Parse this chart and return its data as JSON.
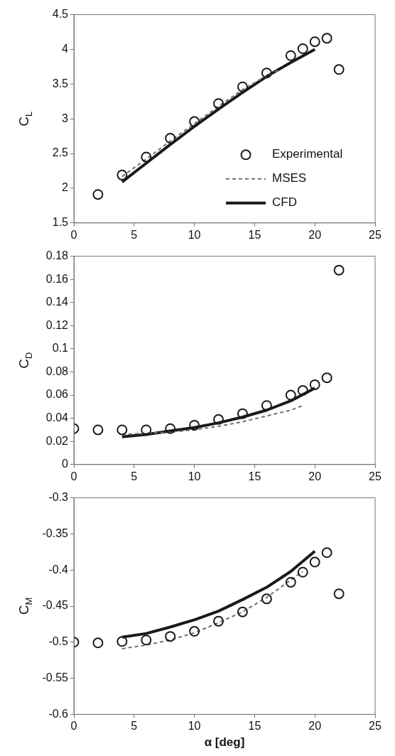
{
  "chart_data": [
    {
      "type": "line",
      "ylabel": "C$_{L}$",
      "xlim": [
        0,
        25
      ],
      "xticks": [
        0,
        5,
        10,
        15,
        20,
        25
      ],
      "ylim": [
        1.5,
        4.5
      ],
      "yticks": [
        1.5,
        2,
        2.5,
        3,
        3.5,
        4,
        4.5
      ],
      "grid": false,
      "legend": "bottom right",
      "series": [
        {
          "name": "Experimental",
          "type": "scatter",
          "marker": "circle",
          "color": "#1a1a1a",
          "x": [
            2,
            4,
            6,
            8,
            10,
            12,
            14,
            16,
            18,
            19,
            20,
            21,
            22
          ],
          "values": [
            1.91,
            2.19,
            2.45,
            2.72,
            2.96,
            3.22,
            3.46,
            3.66,
            3.91,
            4.01,
            4.11,
            4.16,
            3.71
          ]
        },
        {
          "name": "MSES",
          "type": "line",
          "line_style": "dashed",
          "color": "#707070",
          "x": [
            4,
            6,
            8,
            10,
            12,
            14,
            16,
            17
          ],
          "values": [
            2.17,
            2.42,
            2.68,
            2.93,
            3.18,
            3.42,
            3.62,
            3.7
          ]
        },
        {
          "name": "CFD",
          "type": "line",
          "line_style": "solid",
          "color": "#1a1a1a",
          "x": [
            4,
            6,
            8,
            10,
            12,
            14,
            16,
            18,
            20
          ],
          "values": [
            2.09,
            2.36,
            2.63,
            2.89,
            3.14,
            3.38,
            3.61,
            3.81,
            4.0
          ]
        }
      ]
    },
    {
      "type": "line",
      "ylabel": "C$_{D}$",
      "xlim": [
        0,
        25
      ],
      "xticks": [
        0,
        5,
        10,
        15,
        20,
        25
      ],
      "ylim": [
        0,
        0.18
      ],
      "yticks": [
        0,
        0.02,
        0.04,
        0.06,
        0.08,
        0.1,
        0.12,
        0.14,
        0.16,
        0.18
      ],
      "grid": false,
      "series": [
        {
          "type": "scatter",
          "marker": "circle",
          "color": "#1a1a1a",
          "x": [
            0,
            2,
            4,
            6,
            8,
            10,
            12,
            14,
            16,
            18,
            19,
            20,
            21,
            22
          ],
          "values": [
            0.031,
            0.03,
            0.03,
            0.03,
            0.031,
            0.034,
            0.039,
            0.044,
            0.051,
            0.06,
            0.064,
            0.069,
            0.075,
            0.168
          ]
        },
        {
          "type": "line",
          "line_style": "dashed",
          "color": "#707070",
          "x": [
            4,
            6,
            8,
            10,
            12,
            14,
            16,
            18,
            19
          ],
          "values": [
            0.026,
            0.027,
            0.028,
            0.03,
            0.033,
            0.037,
            0.042,
            0.047,
            0.051
          ]
        },
        {
          "type": "line",
          "line_style": "solid",
          "color": "#1a1a1a",
          "x": [
            4,
            6,
            8,
            10,
            12,
            14,
            16,
            18,
            20
          ],
          "values": [
            0.024,
            0.026,
            0.029,
            0.032,
            0.036,
            0.041,
            0.047,
            0.055,
            0.066
          ]
        }
      ]
    },
    {
      "type": "line",
      "ylabel": "C$_{M}$",
      "xlabel": "α [deg]",
      "xlim": [
        0,
        25
      ],
      "xticks": [
        0,
        5,
        10,
        15,
        20,
        25
      ],
      "ylim": [
        -0.6,
        -0.3
      ],
      "yticks": [
        -0.6,
        -0.55,
        -0.5,
        -0.45,
        -0.4,
        -0.35,
        -0.3
      ],
      "grid": false,
      "series": [
        {
          "type": "scatter",
          "marker": "circle",
          "color": "#1a1a1a",
          "x": [
            0,
            2,
            4,
            6,
            8,
            10,
            12,
            14,
            16,
            18,
            19,
            20,
            21,
            22
          ],
          "values": [
            -0.5,
            -0.501,
            -0.499,
            -0.497,
            -0.492,
            -0.485,
            -0.471,
            -0.458,
            -0.44,
            -0.417,
            -0.403,
            -0.389,
            -0.376,
            -0.433
          ]
        },
        {
          "type": "line",
          "line_style": "dashed",
          "color": "#707070",
          "x": [
            4,
            6,
            8,
            10,
            12,
            14,
            16,
            18,
            19
          ],
          "values": [
            -0.509,
            -0.504,
            -0.497,
            -0.487,
            -0.473,
            -0.458,
            -0.438,
            -0.414,
            -0.402
          ]
        },
        {
          "type": "line",
          "line_style": "solid",
          "color": "#1a1a1a",
          "x": [
            4,
            6,
            8,
            10,
            12,
            14,
            16,
            18,
            20
          ],
          "values": [
            -0.493,
            -0.488,
            -0.479,
            -0.469,
            -0.457,
            -0.441,
            -0.424,
            -0.402,
            -0.374
          ]
        }
      ]
    }
  ]
}
